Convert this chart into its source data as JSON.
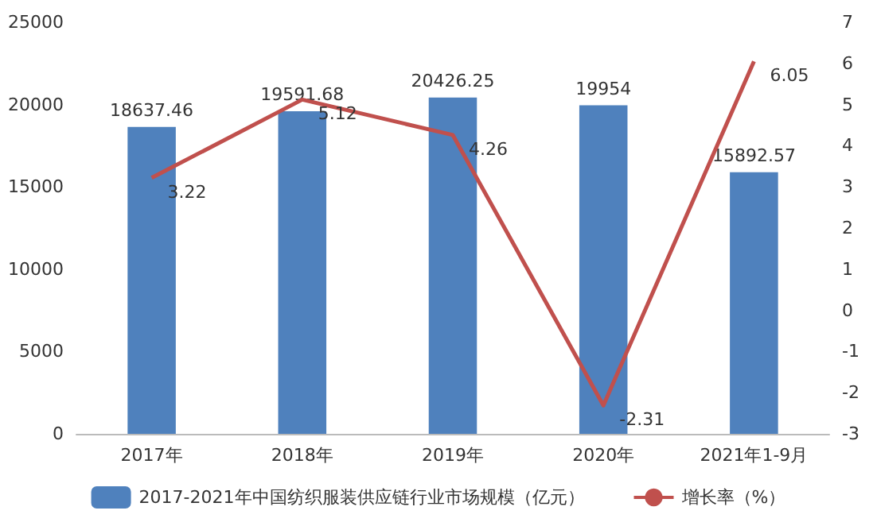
{
  "chart_data": {
    "type": "bar",
    "categories": [
      "2017年",
      "2018年",
      "2019年",
      "2020年",
      "2021年1-9月"
    ],
    "series": [
      {
        "name": "2017-2021年中国纺织服装供应链行业市场规模（亿元）",
        "type": "bar",
        "color": "#4f81bd",
        "values": [
          18637.46,
          19591.68,
          20426.25,
          19954,
          15892.57
        ]
      },
      {
        "name": "增长率（%）",
        "type": "line",
        "axis": "y2",
        "color": "#c0504d",
        "values": [
          3.22,
          5.12,
          4.26,
          -2.31,
          6.05
        ]
      }
    ],
    "ylim": [
      0,
      25000
    ],
    "yticks": [
      0,
      5000,
      10000,
      15000,
      20000,
      25000
    ],
    "y2lim": [
      -3,
      7
    ],
    "y2ticks": [
      -3,
      -2,
      -1,
      0,
      1,
      2,
      3,
      4,
      5,
      6,
      7
    ],
    "data_labels": true,
    "legend": "bottom",
    "grid": false,
    "marker": "none",
    "line_style": "solid"
  }
}
